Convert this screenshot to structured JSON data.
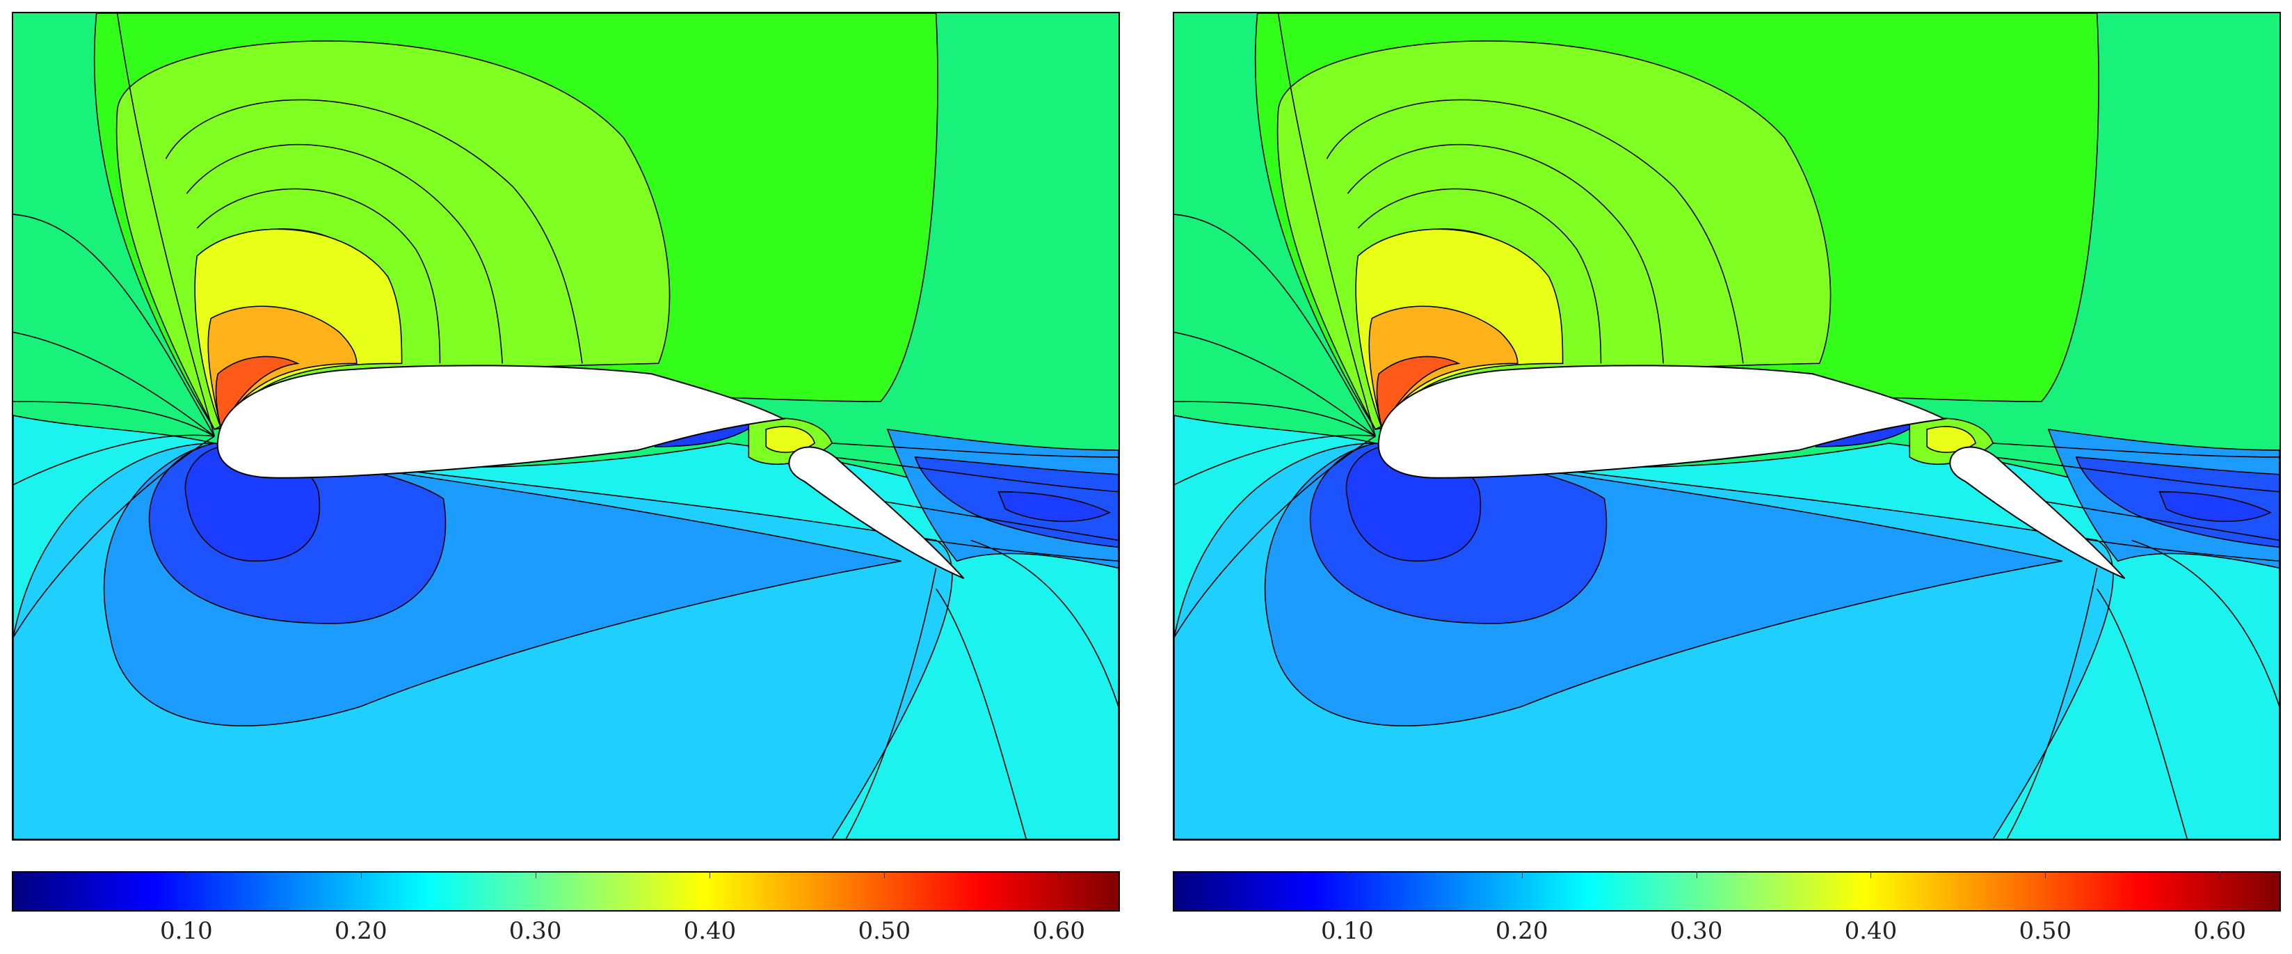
{
  "colorbar": {
    "min": 0.0,
    "max": 0.635,
    "ticks": [
      "0.10",
      "0.20",
      "0.30",
      "0.40",
      "0.50",
      "0.60"
    ],
    "tick_values": [
      0.1,
      0.2,
      0.3,
      0.4,
      0.5,
      0.6
    ],
    "colormap": [
      "#000080",
      "#0000ff",
      "#0080ff",
      "#00ffff",
      "#80ff80",
      "#ffff00",
      "#ff8000",
      "#ff0000",
      "#800000"
    ]
  },
  "panels": [
    {
      "name": "left-contour-panel"
    },
    {
      "name": "right-contour-panel"
    }
  ],
  "field_colors": {
    "freestream": "#18f27a",
    "upper_mid": "#33ff1a",
    "upper_light": "#80ff22",
    "upper_yellow": "#e8ff18",
    "upper_orange": "#ffb21a",
    "upper_red": "#ff5a1a",
    "lower_cyan": "#1cf2ee",
    "lower_sky": "#1fd0ff",
    "lower_blue": "#1c9cff",
    "lower_deep": "#1d52ff",
    "lower_core": "#1a3dff",
    "wake_teal": "#1ae8c9"
  }
}
